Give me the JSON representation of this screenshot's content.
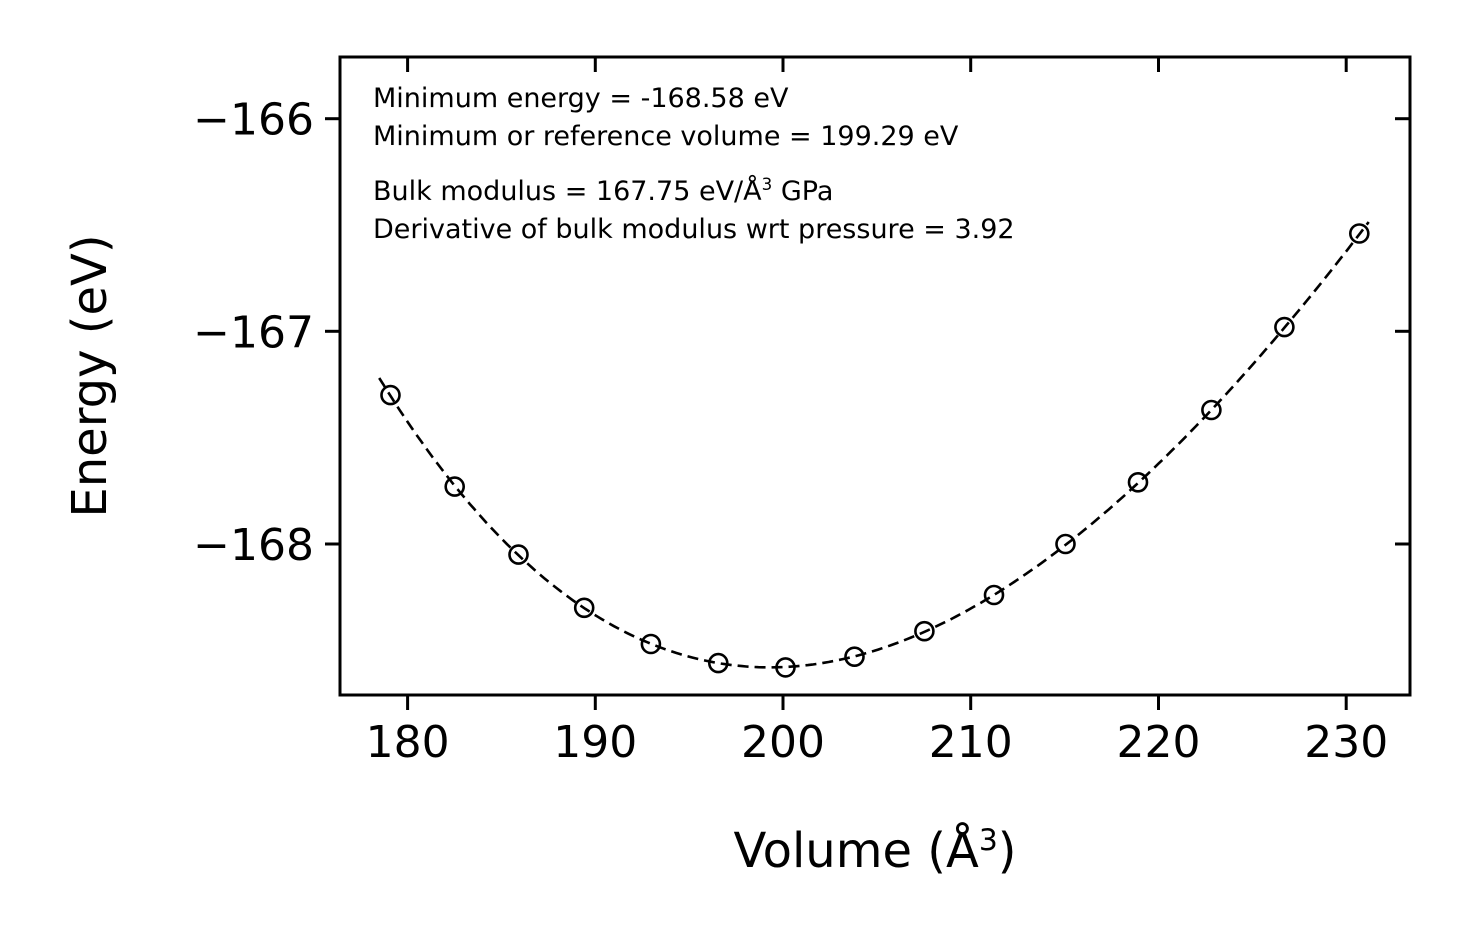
{
  "chart_data": {
    "type": "scatter",
    "title": "",
    "xlabel": "Volume (Å^3)",
    "ylabel": "Energy (eV)",
    "grid": false,
    "legend": null,
    "line_style": "dashed",
    "marker": "open-circle",
    "color": "#000000",
    "xlim": [
      176.4,
      233.4
    ],
    "ylim": [
      -168.71,
      -165.71
    ],
    "xticks": [
      180,
      190,
      200,
      210,
      220,
      230
    ],
    "xtick_labels": [
      "180",
      "190",
      "200",
      "210",
      "220",
      "230"
    ],
    "yticks": [
      -166,
      -167,
      -168
    ],
    "ytick_labels": [
      "−166",
      "−167",
      "−168"
    ],
    "x": [
      179.09,
      182.51,
      185.91,
      189.41,
      192.96,
      196.55,
      200.13,
      203.81,
      207.53,
      211.24,
      215.05,
      218.91,
      222.82,
      226.71,
      230.7
    ],
    "y": [
      -167.3,
      -167.73,
      -168.05,
      -168.3,
      -168.47,
      -168.56,
      -168.58,
      -168.53,
      -168.41,
      -168.24,
      -168.0,
      -167.71,
      -167.37,
      -166.98,
      -166.54
    ],
    "fit": {
      "model": "birch-murnaghan",
      "E0_eV": -168.58,
      "V0_A3": 199.29,
      "B0_GPa": 167.75,
      "B0_prime": 3.92
    }
  },
  "annotation": {
    "line1": "Minimum energy = -168.58 eV",
    "line2": "Minimum or reference volume = 199.29 eV",
    "line3_prefix": "Bulk modulus = 167.75 eV/Å",
    "line3_sup": "3",
    "line3_suffix": " GPa",
    "line4": "Derivative of bulk modulus wrt pressure = 3.92"
  },
  "axes": {
    "ylabel": "Energy (eV)",
    "xlabel_prefix": "Volume (Å",
    "xlabel_sup": "3",
    "xlabel_suffix": ")"
  }
}
